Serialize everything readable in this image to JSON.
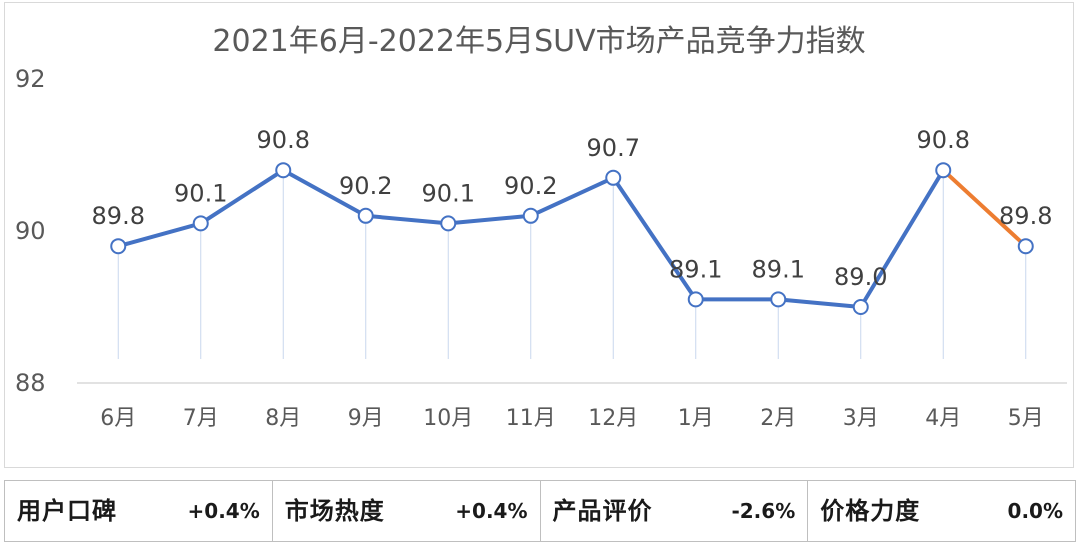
{
  "chart_data": {
    "type": "line",
    "title": "2021年6月-2022年5月SUV市场产品竞争力指数",
    "categories": [
      "6月",
      "7月",
      "8月",
      "9月",
      "10月",
      "11月",
      "12月",
      "1月",
      "2月",
      "3月",
      "4月",
      "5月"
    ],
    "values": [
      89.8,
      90.1,
      90.8,
      90.2,
      90.1,
      90.2,
      90.7,
      89.1,
      89.1,
      89.0,
      90.8,
      89.8
    ],
    "value_labels": [
      "89.8",
      "90.1",
      "90.8",
      "90.2",
      "90.1",
      "90.2",
      "90.7",
      "89.1",
      "89.1",
      "89.0",
      "90.8",
      "89.8"
    ],
    "ylim": [
      88,
      92
    ],
    "yticks": [
      "88",
      "90",
      "92"
    ],
    "highlight_last_segment": true,
    "grid": false,
    "colors": {
      "line": "#4472c4",
      "highlight": "#ed7d31",
      "marker_fill": "#ffffff",
      "drop_line": "#c9d7ee",
      "axis": "#d9d9d9"
    }
  },
  "metrics": [
    {
      "name": "用户口碑",
      "value": "+0.4%"
    },
    {
      "name": "市场热度",
      "value": "+0.4%"
    },
    {
      "name": "产品评价",
      "value": "-2.6%"
    },
    {
      "name": "价格力度",
      "value": "0.0%"
    }
  ]
}
